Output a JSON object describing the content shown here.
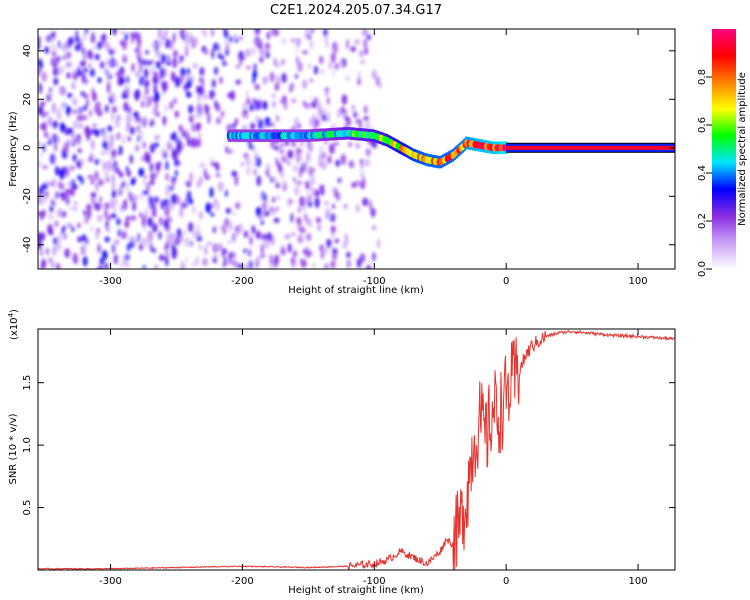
{
  "title": "C2E1.2024.205.07.34.G17",
  "chart_data": [
    {
      "type": "heatmap",
      "title": "C2E1.2024.205.07.34.G17",
      "xlabel": "Height of straight line (km)",
      "ylabel": "Frequency (Hz)",
      "xlim": [
        -355,
        128
      ],
      "ylim": [
        -50,
        49
      ],
      "xticks": [
        -300,
        -200,
        -100,
        0,
        100
      ],
      "yticks": [
        -40,
        -20,
        0,
        20,
        40
      ],
      "colorbar": {
        "label": "Normalized spectral amplitude",
        "range": [
          0.0,
          1.0
        ],
        "ticks": [
          0.0,
          0.2,
          0.4,
          0.6,
          0.8
        ],
        "colors": [
          "#ffffff",
          "#c8a0f8",
          "#8a2be2",
          "#0000ff",
          "#00e5ff",
          "#00ff00",
          "#ffff00",
          "#ff8000",
          "#ff0000",
          "#ff0080"
        ]
      },
      "signal_trace": {
        "description_x": [
          -210,
          -150,
          -120,
          -100,
          -90,
          -80,
          -70,
          -60,
          -50,
          -40,
          -30,
          -20,
          -10,
          0,
          128
        ],
        "frequency": [
          5,
          5,
          6,
          5,
          3,
          0,
          -3,
          -5,
          -6,
          -3,
          2,
          1,
          0,
          0,
          0
        ],
        "amplitude": [
          0.45,
          0.45,
          0.55,
          0.6,
          0.65,
          0.75,
          0.8,
          0.85,
          0.85,
          0.85,
          0.9,
          0.95,
          0.95,
          1.0,
          1.0
        ]
      },
      "noise_region": {
        "x_from": -355,
        "x_to": -110,
        "amplitude": 0.25
      }
    },
    {
      "type": "line",
      "xlabel": "Height of straight line (km)",
      "ylabel": "SNR (10 * v/v)",
      "y_multiplier": "(x10^4)",
      "xlim": [
        -355,
        128
      ],
      "ylim": [
        0,
        1.93
      ],
      "xticks": [
        -300,
        -200,
        -100,
        0,
        100
      ],
      "yticks": [
        0.5,
        1.0,
        1.5
      ],
      "color": "#e8322d",
      "x": [
        -355,
        -300,
        -250,
        -200,
        -150,
        -120,
        -100,
        -90,
        -80,
        -70,
        -60,
        -50,
        -45,
        -40,
        -35,
        -30,
        -25,
        -20,
        -15,
        -10,
        -5,
        0,
        5,
        10,
        15,
        20,
        30,
        40,
        50,
        60,
        80,
        100,
        128
      ],
      "values": [
        0.01,
        0.01,
        0.02,
        0.03,
        0.02,
        0.03,
        0.05,
        0.08,
        0.15,
        0.1,
        0.05,
        0.15,
        0.25,
        0.2,
        0.35,
        0.6,
        1.0,
        1.2,
        1.05,
        1.3,
        1.25,
        1.4,
        1.5,
        1.6,
        1.72,
        1.8,
        1.87,
        1.9,
        1.91,
        1.9,
        1.88,
        1.87,
        1.85
      ]
    }
  ]
}
